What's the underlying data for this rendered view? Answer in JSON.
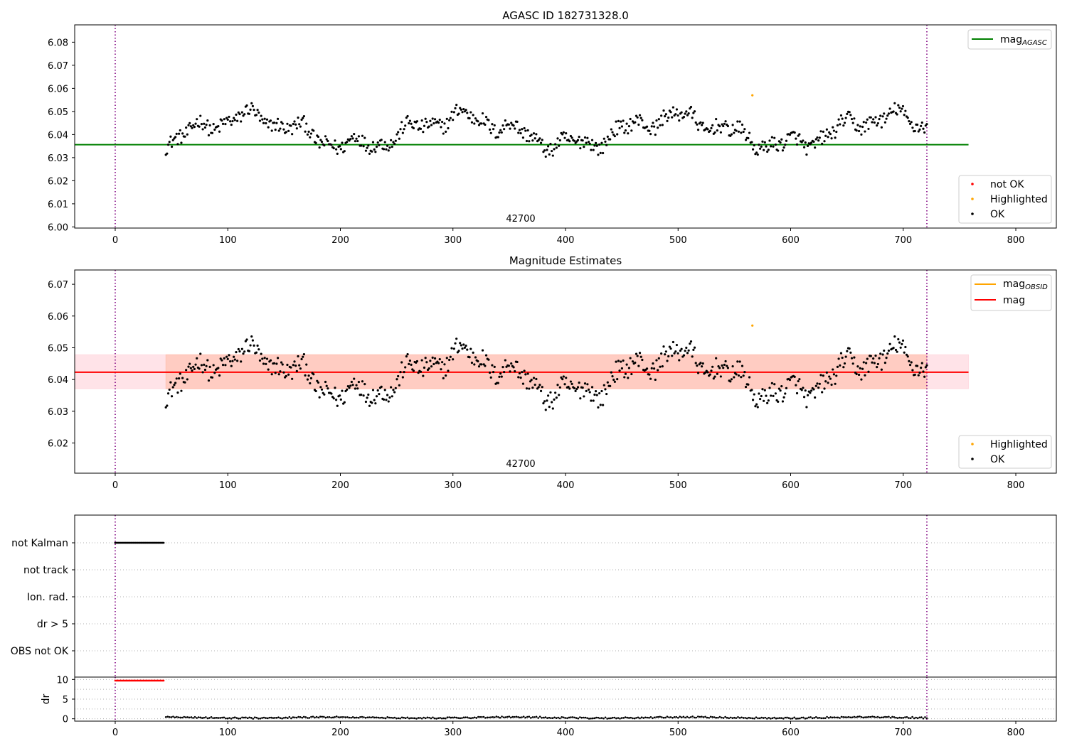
{
  "figure": {
    "obsid_label": "42700"
  },
  "chart_data": [
    {
      "type": "scatter",
      "title": "AGASC ID 182731328.0",
      "xlim": [
        -36,
        836
      ],
      "ylim": [
        5.9995,
        6.0875
      ],
      "xticks": [
        0,
        100,
        200,
        300,
        400,
        500,
        600,
        700,
        800
      ],
      "yticks": [
        "6.00",
        "6.01",
        "6.02",
        "6.03",
        "6.04",
        "6.05",
        "6.06",
        "6.07",
        "6.08"
      ],
      "vlines": [
        0,
        721
      ],
      "hlines": [
        {
          "name": "mag_AGASC",
          "y": 6.0356,
          "x": [
            -36,
            758
          ],
          "color": "#008000"
        }
      ],
      "legend_lines": [
        {
          "main": "mag",
          "sub": "AGASC",
          "color": "#008000"
        }
      ],
      "legend_points": [
        {
          "label": "not OK",
          "color": "#ff0000"
        },
        {
          "label": "Highlighted",
          "color": "#ffa500"
        },
        {
          "label": "OK",
          "color": "#000000"
        }
      ],
      "series": [
        {
          "label": "OK",
          "color": "#000000",
          "x_range": [
            45,
            721
          ],
          "n": 640,
          "base": 6.0415,
          "amp": 0.0065
        },
        {
          "label": "Highlighted",
          "color": "#ffa500",
          "points": [
            [
              566,
              6.057
            ]
          ]
        }
      ]
    },
    {
      "type": "scatter",
      "title": "Magnitude Estimates",
      "xlim": [
        -36,
        836
      ],
      "ylim": [
        6.0105,
        6.0745
      ],
      "xticks": [
        0,
        100,
        200,
        300,
        400,
        500,
        600,
        700,
        800
      ],
      "yticks": [
        "6.02",
        "6.03",
        "6.04",
        "6.05",
        "6.06",
        "6.07"
      ],
      "vlines": [
        0,
        721
      ],
      "hlines": [
        {
          "name": "mag",
          "y": 6.0423,
          "x": [
            -36,
            758
          ],
          "color": "#ff0000"
        }
      ],
      "bands": [
        {
          "y": [
            6.0371,
            6.0478
          ],
          "x": [
            -36,
            758
          ],
          "color": "#ffc0cb",
          "opacity": 0.45
        },
        {
          "y": [
            6.0371,
            6.0478
          ],
          "x": [
            45,
            721
          ],
          "color": "#ffa07a",
          "opacity": 0.35
        }
      ],
      "legend_lines": [
        {
          "main": "mag",
          "sub": "OBSID",
          "color": "#ffa500"
        },
        {
          "main": "mag",
          "sub": "",
          "color": "#ff0000"
        }
      ],
      "legend_points": [
        {
          "label": "Highlighted",
          "color": "#ffa500"
        },
        {
          "label": "OK",
          "color": "#000000"
        }
      ],
      "series": [
        {
          "label": "OK",
          "color": "#000000",
          "x_range": [
            45,
            721
          ],
          "n": 640,
          "base": 6.0415,
          "amp": 0.0065
        },
        {
          "label": "Highlighted",
          "color": "#ffa500",
          "points": [
            [
              566,
              6.057
            ]
          ]
        }
      ]
    },
    {
      "type": "scatter",
      "title": "",
      "xlim": [
        -36,
        836
      ],
      "categories": [
        "not Kalman",
        "not track",
        "Ion. rad.",
        "dr > 5",
        "OBS not OK"
      ],
      "vlines": [
        0,
        721
      ],
      "flag_series": [
        {
          "category": "not Kalman",
          "x_range": [
            0,
            43
          ],
          "n": 44,
          "color": "#000000"
        }
      ]
    },
    {
      "type": "scatter",
      "title": "",
      "ylabel": "dr",
      "xlim": [
        -36,
        836
      ],
      "ylim": [
        -0.6,
        10.6
      ],
      "xticks": [
        0,
        100,
        200,
        300,
        400,
        500,
        600,
        700,
        800
      ],
      "yticks": [
        "0",
        "5",
        "10"
      ],
      "vlines": [
        0,
        721
      ],
      "series": [
        {
          "label": "not OK",
          "color": "#ff0000",
          "x_range": [
            0,
            43
          ],
          "n": 44,
          "value": 9.7
        },
        {
          "label": "OK",
          "color": "#000000",
          "x_range": [
            45,
            721
          ],
          "n": 420,
          "value": 0.3
        }
      ]
    }
  ]
}
